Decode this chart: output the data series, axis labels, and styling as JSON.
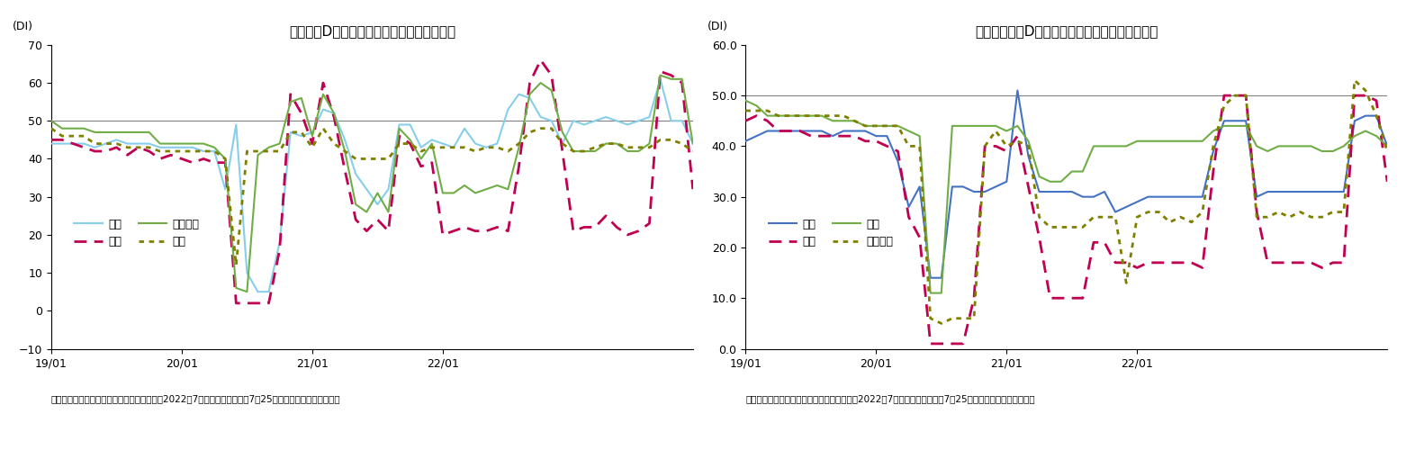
{
  "chart1": {
    "title": "現状判断DＩ（家計動向関連）の内訳の推移",
    "ylim": [
      -10,
      70
    ],
    "yticks": [
      -10,
      0,
      10,
      20,
      30,
      40,
      50,
      60,
      70
    ],
    "hline": 50,
    "source": "（出所）内閣府「景気ウォッチャー調査」（2022年7月調査、調査期間：7月25日から月末、季節調整値）",
    "xtick_labels": [
      "19/01",
      "20/01",
      "21/01",
      "22/01"
    ],
    "legend1_col1": [
      "小売",
      "サービス"
    ],
    "legend1_col2": [
      "飲食",
      "住宅"
    ],
    "kouri": [
      44,
      44,
      44,
      44,
      43,
      44,
      45,
      44,
      44,
      44,
      43,
      43,
      43,
      43,
      42,
      42,
      32,
      49,
      10,
      5,
      5,
      18,
      47,
      46,
      47,
      53,
      52,
      45,
      36,
      32,
      28,
      32,
      49,
      49,
      43,
      45,
      44,
      43,
      48,
      44,
      43,
      44,
      53,
      57,
      56,
      51,
      50,
      44,
      50,
      49,
      50,
      51,
      50,
      49,
      50,
      51,
      61,
      50,
      50,
      44
    ],
    "inshoku": [
      45,
      45,
      44,
      43,
      42,
      42,
      43,
      41,
      43,
      42,
      40,
      41,
      40,
      39,
      40,
      39,
      39,
      2,
      2,
      2,
      2,
      16,
      57,
      52,
      44,
      60,
      51,
      37,
      24,
      21,
      24,
      21,
      46,
      44,
      38,
      39,
      20,
      21,
      22,
      21,
      21,
      22,
      21,
      38,
      60,
      66,
      62,
      42,
      21,
      22,
      22,
      25,
      22,
      20,
      21,
      23,
      63,
      62,
      60,
      32
    ],
    "service": [
      50,
      48,
      48,
      48,
      47,
      47,
      47,
      47,
      47,
      47,
      44,
      44,
      44,
      44,
      44,
      43,
      40,
      6,
      5,
      41,
      43,
      44,
      55,
      56,
      46,
      57,
      52,
      42,
      28,
      26,
      31,
      26,
      48,
      45,
      40,
      44,
      31,
      31,
      33,
      31,
      32,
      33,
      32,
      43,
      57,
      60,
      58,
      47,
      42,
      42,
      42,
      44,
      44,
      42,
      42,
      44,
      62,
      61,
      61,
      44
    ],
    "jutaku": [
      48,
      46,
      46,
      46,
      44,
      44,
      44,
      43,
      43,
      43,
      42,
      42,
      42,
      42,
      42,
      42,
      40,
      12,
      42,
      42,
      42,
      42,
      47,
      47,
      43,
      48,
      44,
      42,
      40,
      40,
      40,
      40,
      44,
      44,
      42,
      43,
      43,
      43,
      43,
      42,
      43,
      43,
      42,
      44,
      47,
      48,
      48,
      44,
      42,
      42,
      43,
      44,
      44,
      43,
      43,
      43,
      45,
      45,
      44,
      42
    ]
  },
  "chart2": {
    "title": "現状水準判断DＩ（家計動向関連）の内訳の推移",
    "ylim": [
      0.0,
      60.0
    ],
    "yticks": [
      0.0,
      10.0,
      20.0,
      30.0,
      40.0,
      50.0,
      60.0
    ],
    "hline": 50,
    "source": "（出所）内閣府「景気ウォッチャー調査」（2022年7月調査、調査期間：7月25日から月末、季節調整値）",
    "xtick_labels": [
      "19/01",
      "20/01",
      "21/01",
      "22/01"
    ],
    "legend2_col1": [
      "小売",
      "住宅"
    ],
    "legend2_col2": [
      "飲食",
      "サービス"
    ],
    "kouri": [
      41,
      42,
      43,
      43,
      43,
      43,
      43,
      43,
      42,
      43,
      43,
      43,
      42,
      42,
      37,
      28,
      32,
      14,
      14,
      32,
      32,
      31,
      31,
      32,
      33,
      51,
      38,
      31,
      31,
      31,
      31,
      30,
      30,
      31,
      27,
      28,
      29,
      30,
      30,
      30,
      30,
      30,
      30,
      39,
      45,
      45,
      45,
      30,
      31,
      31,
      31,
      31,
      31,
      31,
      31,
      31,
      45,
      46,
      46,
      40
    ],
    "inshoku": [
      45,
      46,
      45,
      43,
      43,
      43,
      42,
      42,
      42,
      42,
      42,
      41,
      41,
      40,
      39,
      26,
      22,
      1,
      1,
      1,
      1,
      10,
      40,
      40,
      39,
      42,
      32,
      22,
      10,
      10,
      10,
      10,
      21,
      21,
      17,
      17,
      16,
      17,
      17,
      17,
      17,
      17,
      16,
      35,
      50,
      50,
      50,
      27,
      17,
      17,
      17,
      17,
      17,
      16,
      17,
      17,
      50,
      50,
      49,
      33
    ],
    "jutaku": [
      49,
      48,
      46,
      46,
      46,
      46,
      46,
      46,
      45,
      45,
      45,
      44,
      44,
      44,
      44,
      43,
      42,
      11,
      11,
      44,
      44,
      44,
      44,
      44,
      43,
      44,
      41,
      34,
      33,
      33,
      35,
      35,
      40,
      40,
      40,
      40,
      41,
      41,
      41,
      41,
      41,
      41,
      41,
      43,
      44,
      44,
      44,
      40,
      39,
      40,
      40,
      40,
      40,
      39,
      39,
      40,
      42,
      43,
      42,
      40
    ],
    "service": [
      47,
      47,
      47,
      46,
      46,
      46,
      46,
      46,
      46,
      46,
      45,
      44,
      44,
      44,
      44,
      40,
      40,
      6,
      5,
      6,
      6,
      6,
      40,
      43,
      40,
      41,
      40,
      26,
      24,
      24,
      24,
      24,
      26,
      26,
      26,
      13,
      26,
      27,
      27,
      25,
      26,
      25,
      27,
      40,
      48,
      50,
      50,
      26,
      26,
      27,
      26,
      27,
      26,
      26,
      27,
      27,
      53,
      51,
      46,
      39
    ]
  }
}
